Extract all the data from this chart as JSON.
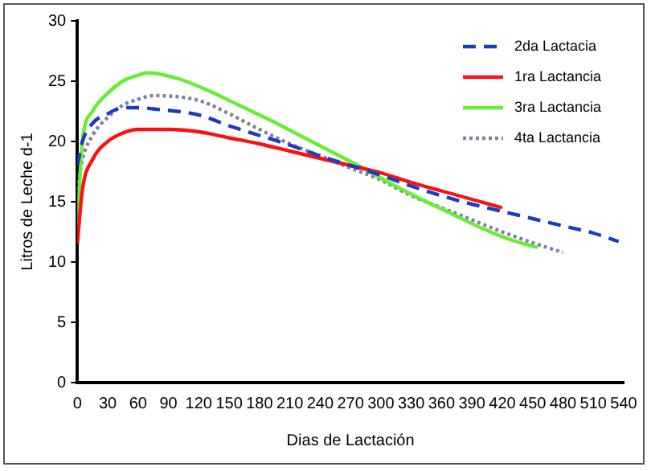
{
  "chart_data": {
    "type": "line",
    "xlabel": "Dias de Lactación",
    "ylabel": "Litros de Leche d-1",
    "xlim": [
      0,
      540
    ],
    "xticks": [
      0,
      30,
      60,
      90,
      120,
      150,
      180,
      210,
      240,
      270,
      300,
      330,
      360,
      390,
      420,
      450,
      480,
      510,
      540
    ],
    "ylim": [
      0,
      30
    ],
    "yticks": [
      0,
      5,
      10,
      15,
      20,
      25,
      30
    ],
    "grid": false,
    "legend": "top right",
    "marker": "none",
    "series": [
      {
        "name": "2da Lactacia",
        "color": "#1c3cc0",
        "line_style": "dashed",
        "x": [
          0,
          5,
          15,
          30,
          45,
          60,
          75,
          120,
          150,
          180,
          210,
          240,
          270,
          300,
          330,
          360,
          390,
          420,
          450,
          480,
          510,
          535
        ],
        "values": [
          18,
          20,
          21.5,
          22.3,
          22.8,
          22.8,
          22.7,
          22.2,
          21.3,
          20.5,
          19.7,
          18.8,
          18,
          17.2,
          16.3,
          15.5,
          14.8,
          14.2,
          13.6,
          13,
          12.4,
          11.7
        ]
      },
      {
        "name": "1ra Lactancia",
        "color": "#ff1010",
        "line_style": "solid",
        "x": [
          0,
          5,
          15,
          30,
          45,
          60,
          90,
          120,
          150,
          180,
          210,
          240,
          270,
          300,
          330,
          360,
          390,
          420
        ],
        "values": [
          11.5,
          16,
          18.5,
          20,
          20.7,
          21,
          21,
          20.8,
          20.3,
          19.8,
          19.2,
          18.6,
          18,
          17.4,
          16.6,
          15.9,
          15.2,
          14.5
        ]
      },
      {
        "name": "3ra Lactancia",
        "color": "#66ee33",
        "line_style": "solid",
        "x": [
          0,
          5,
          15,
          30,
          45,
          60,
          70,
          100,
          130,
          160,
          190,
          220,
          250,
          280,
          310,
          340,
          370,
          400,
          430,
          455
        ],
        "values": [
          13,
          20,
          22.5,
          24,
          25,
          25.5,
          25.7,
          25.2,
          24.2,
          23,
          21.8,
          20.5,
          19.2,
          17.9,
          16.5,
          15.2,
          14,
          12.8,
          11.8,
          11.2
        ]
      },
      {
        "name": "4ta Lactancia",
        "color": "#8080a8",
        "line_style": "dotted",
        "x": [
          0,
          5,
          15,
          30,
          45,
          60,
          75,
          120,
          150,
          180,
          210,
          240,
          270,
          300,
          330,
          360,
          390,
          420,
          450,
          480
        ],
        "values": [
          16,
          18.5,
          20.5,
          22,
          23,
          23.5,
          23.8,
          23.4,
          22.3,
          21,
          19.8,
          18.8,
          17.8,
          16.8,
          15.5,
          14.5,
          13.5,
          12.5,
          11.6,
          10.8
        ]
      }
    ]
  }
}
